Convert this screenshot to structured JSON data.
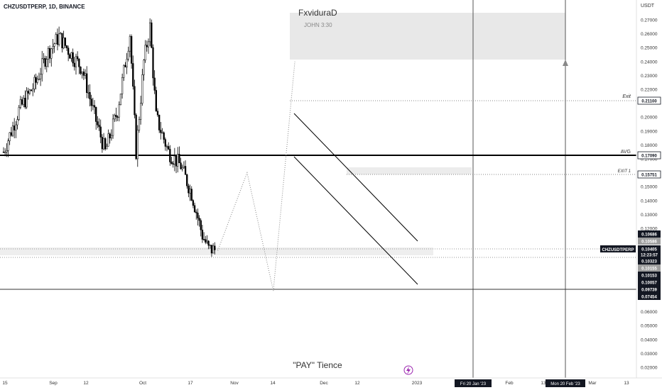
{
  "header": {
    "symbol_line": "CHZUSDTPERP, 1D, BINANCE"
  },
  "annotations": {
    "author": "FxviduraD",
    "verse": "JOHN 3:30",
    "caption": "\"PAY\" Tience",
    "exit_label": "Exit",
    "avg_label": "AVG",
    "exit1_label": "EXIT 1"
  },
  "price_axis": {
    "currency": "USDT",
    "ticks": [
      "0.27000",
      "0.26000",
      "0.25000",
      "0.24000",
      "0.23000",
      "0.22000",
      "0.20000",
      "0.19000",
      "0.18000",
      "0.17000",
      "0.15000",
      "0.14000",
      "0.13000",
      "0.12000",
      "0.06000",
      "0.05000",
      "0.04000",
      "0.03000",
      "0.02000"
    ],
    "tags": [
      {
        "value": "0.21100",
        "style": "outline"
      },
      {
        "value": "0.17090",
        "style": "outline"
      },
      {
        "value": "0.15751",
        "style": "outline"
      },
      {
        "value": "0.10686",
        "style": "dark"
      },
      {
        "value": "0.10586",
        "style": "grey"
      },
      {
        "value": "0.10405",
        "style": "dark"
      },
      {
        "value": "12:23:57",
        "style": "dark"
      },
      {
        "value": "0.10323",
        "style": "dark"
      },
      {
        "value": "0.10155",
        "style": "grey"
      },
      {
        "value": "0.10153",
        "style": "dark"
      },
      {
        "value": "0.10057",
        "style": "dark"
      },
      {
        "value": "0.09739",
        "style": "dark"
      },
      {
        "value": "0.07454",
        "style": "dark"
      }
    ],
    "symbol_tag": "CHZUSDTPERP"
  },
  "time_axis": {
    "labels": [
      "15",
      "Sep",
      "12",
      "Oct",
      "17",
      "Nov",
      "14",
      "Dec",
      "12",
      "2023",
      "Feb",
      "13",
      "Mar",
      "13"
    ],
    "markers": [
      "Fri 20 Jan '23",
      "Mon 20 Feb '23"
    ]
  },
  "colors": {
    "candle": "#000000",
    "zone_fill": "#e8e8e8",
    "grid_line": "#555555",
    "tag_dark": "#131722",
    "tag_grey": "#9e9e9e",
    "lightning_icon": "#9c27b0"
  },
  "chart_data": {
    "type": "candlestick",
    "title": "CHZUSDTPERP, 1D, BINANCE",
    "y_unit": "USDT",
    "ylim": [
      0.0,
      0.28
    ],
    "xlim": [
      "2022-08-15",
      "2023-03-15"
    ],
    "horizontal_levels": [
      {
        "name": "Exit",
        "value": 0.211
      },
      {
        "name": "AVG",
        "value": 0.1709
      },
      {
        "name": "EXIT 1",
        "value": 0.15751
      },
      {
        "value": 0.10405
      },
      {
        "value": 0.09739
      },
      {
        "value": 0.07454
      }
    ],
    "vertical_markers": [
      "2023-01-20",
      "2023-02-20"
    ],
    "target_zone": {
      "from": 0.242,
      "to": 0.276
    },
    "candle_close_path": [
      {
        "date": "2022-08-15",
        "close": 0.175
      },
      {
        "date": "2022-08-25",
        "close": 0.205
      },
      {
        "date": "2022-09-05",
        "close": 0.225
      },
      {
        "date": "2022-09-12",
        "close": 0.245
      },
      {
        "date": "2022-09-20",
        "close": 0.258
      },
      {
        "date": "2022-09-28",
        "close": 0.245
      },
      {
        "date": "2022-10-05",
        "close": 0.235
      },
      {
        "date": "2022-10-12",
        "close": 0.205
      },
      {
        "date": "2022-10-20",
        "close": 0.175
      },
      {
        "date": "2022-10-28",
        "close": 0.205
      },
      {
        "date": "2022-11-05",
        "close": 0.26
      },
      {
        "date": "2022-11-09",
        "close": 0.175
      },
      {
        "date": "2022-11-14",
        "close": 0.24
      },
      {
        "date": "2022-11-18",
        "close": 0.265
      },
      {
        "date": "2022-11-22",
        "close": 0.2
      },
      {
        "date": "2022-11-30",
        "close": 0.175
      },
      {
        "date": "2022-12-08",
        "close": 0.165
      },
      {
        "date": "2022-12-15",
        "close": 0.145
      },
      {
        "date": "2022-12-22",
        "close": 0.115
      },
      {
        "date": "2022-12-26",
        "close": 0.105
      },
      {
        "date": "2022-12-30",
        "close": 0.1045
      }
    ],
    "projection": [
      {
        "date": "2023-01-01",
        "price": 0.104
      },
      {
        "date": "2023-01-20",
        "price": 0.16
      },
      {
        "date": "2023-02-06",
        "price": 0.075
      },
      {
        "date": "2023-02-20",
        "price": 0.24
      }
    ]
  }
}
